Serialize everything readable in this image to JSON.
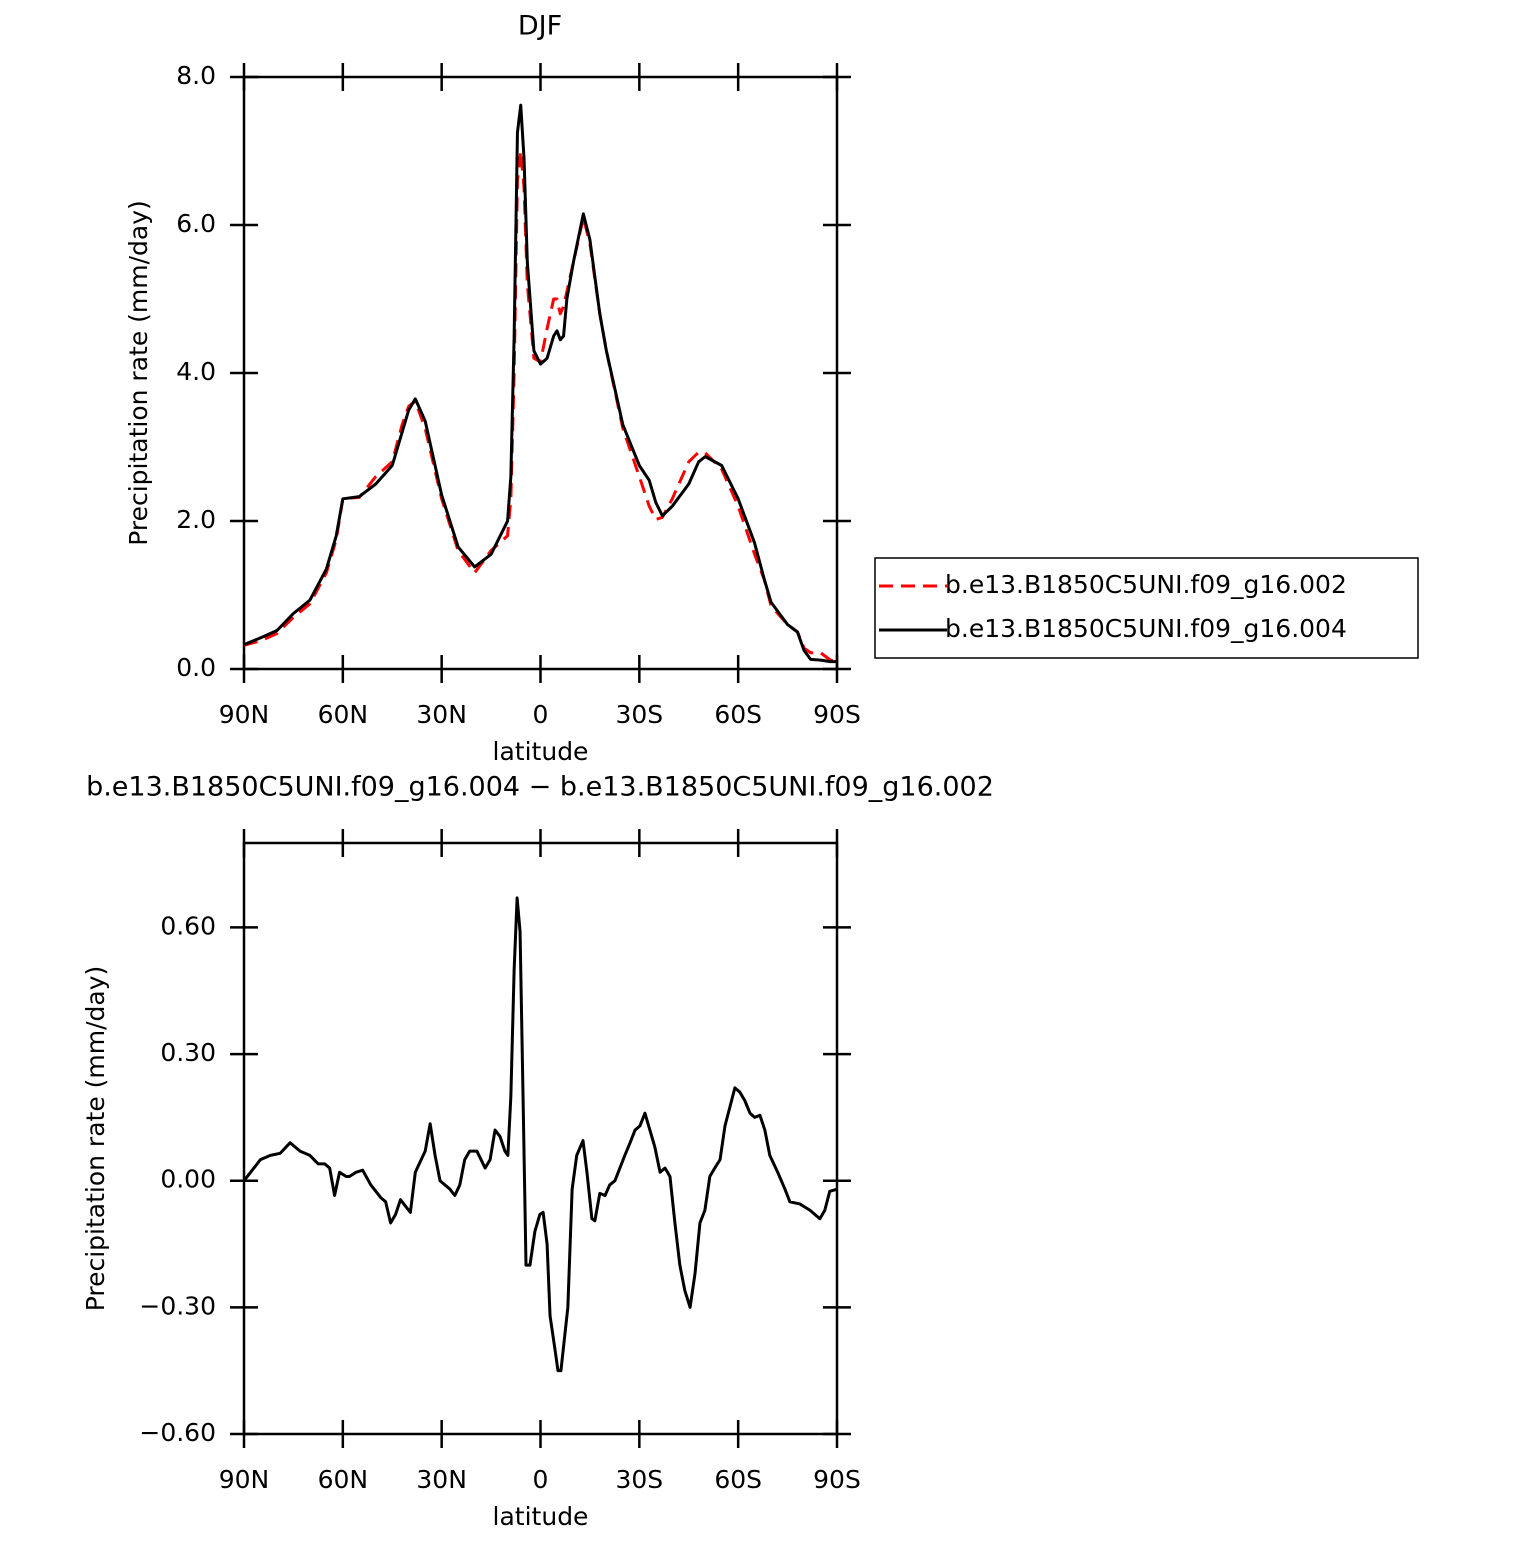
{
  "chart_data": [
    {
      "type": "line",
      "title": "DJF",
      "xlabel": "latitude",
      "ylabel": "Precipitation rate (mm/day)",
      "x": [
        90,
        85,
        80,
        75,
        70,
        65,
        62,
        60,
        55,
        50,
        45,
        42,
        40,
        38,
        35,
        30,
        25,
        20,
        15,
        10,
        9,
        8,
        7,
        6,
        5,
        4,
        2,
        0,
        -2,
        -4,
        -5,
        -6,
        -7,
        -8,
        -10,
        -13,
        -15,
        -18,
        -20,
        -25,
        -30,
        -33,
        -35,
        -37,
        -40,
        -45,
        -48,
        -50,
        -55,
        -60,
        -65,
        -68,
        -70,
        -75,
        -78,
        -80,
        -82,
        -85,
        -88,
        -90
      ],
      "series": [
        {
          "name": "b.e13.B1850C5UNI.f09_g16.002",
          "color": "#ff0000",
          "dash": true,
          "values": [
            0.32,
            0.38,
            0.48,
            0.7,
            0.88,
            1.3,
            1.75,
            2.3,
            2.32,
            2.6,
            2.8,
            3.3,
            3.55,
            3.62,
            3.25,
            2.3,
            1.6,
            1.3,
            1.6,
            1.8,
            2.3,
            4.0,
            6.6,
            7.0,
            6.5,
            5.2,
            4.2,
            4.15,
            4.6,
            5.0,
            5.0,
            4.8,
            4.9,
            5.1,
            5.5,
            6.1,
            5.75,
            4.8,
            4.3,
            3.25,
            2.6,
            2.2,
            2.02,
            2.05,
            2.3,
            2.8,
            2.93,
            2.92,
            2.7,
            2.2,
            1.55,
            1.2,
            0.85,
            0.6,
            0.5,
            0.28,
            0.22,
            0.22,
            0.12,
            0.1
          ]
        },
        {
          "name": "b.e13.B1850C5UNI.f09_g16.004",
          "color": "#000000",
          "dash": false,
          "values": [
            0.33,
            0.42,
            0.52,
            0.75,
            0.93,
            1.35,
            1.8,
            2.3,
            2.33,
            2.5,
            2.75,
            3.2,
            3.5,
            3.65,
            3.35,
            2.35,
            1.65,
            1.38,
            1.55,
            2.0,
            2.6,
            4.5,
            7.25,
            7.62,
            6.9,
            5.5,
            4.3,
            4.12,
            4.2,
            4.5,
            4.57,
            4.45,
            4.5,
            5.0,
            5.5,
            6.15,
            5.8,
            4.8,
            4.3,
            3.3,
            2.75,
            2.55,
            2.25,
            2.07,
            2.2,
            2.5,
            2.8,
            2.87,
            2.75,
            2.3,
            1.7,
            1.2,
            0.9,
            0.6,
            0.5,
            0.25,
            0.13,
            0.12,
            0.1,
            0.1
          ]
        }
      ],
      "xlim": [
        90,
        -90
      ],
      "xticks": [
        {
          "value": 90,
          "label": "90N"
        },
        {
          "value": 60,
          "label": "60N"
        },
        {
          "value": 30,
          "label": "30N"
        },
        0,
        {
          "value": -30,
          "label": "30S"
        },
        {
          "value": -60,
          "label": "60S"
        },
        {
          "value": -90,
          "label": "90S"
        }
      ],
      "ylim": [
        0,
        8
      ],
      "yticks": [
        {
          "value": 0,
          "label": "0.0"
        },
        {
          "value": 2,
          "label": "2.0"
        },
        {
          "value": 4,
          "label": "4.0"
        },
        {
          "value": 6,
          "label": "6.0"
        },
        {
          "value": 8,
          "label": "8.0"
        }
      ],
      "legend": "right"
    },
    {
      "type": "line",
      "title": "b.e13.B1850C5UNI.f09_g16.004 − b.e13.B1850C5UNI.f09_g16.002",
      "xlabel": "latitude",
      "ylabel": "Precipitation rate (mm/day)",
      "x": [
        90,
        88,
        85,
        82,
        79,
        76,
        73,
        70,
        67.5,
        65.5,
        64,
        62.5,
        61,
        59,
        58,
        56,
        54,
        51.5,
        48.5,
        47,
        45.5,
        44,
        42.5,
        41,
        39.5,
        38,
        35,
        33.5,
        32,
        30.5,
        29,
        27.5,
        26,
        24.5,
        23,
        21.5,
        19.3,
        16.8,
        15.3,
        13.8,
        12.3,
        10.8,
        9.9,
        9,
        8,
        7.1,
        6.2,
        5.3,
        4.4,
        3.2,
        1.7,
        0.2,
        -0.8,
        -2,
        -2.9,
        -4.4,
        -5.3,
        -6.2,
        -8.3,
        -9.6,
        -11,
        -12.9,
        -14.1,
        -15.6,
        -16.5,
        -18,
        -19.6,
        -21,
        -22.6,
        -25.6,
        -27.2,
        -28.7,
        -30.2,
        -31.7,
        -33.2,
        -34.7,
        -36.3,
        -37.8,
        -39.3,
        -40.8,
        -42.3,
        -43.8,
        -45.4,
        -46.9,
        -48.4,
        -49.9,
        -51.4,
        -52.9,
        -54.5,
        -56,
        -59,
        -60.5,
        -62,
        -63.6,
        -65,
        -66.6,
        -68.1,
        -69.6,
        -72,
        -74.2,
        -75.7,
        -78.7,
        -81.8,
        -84.8,
        -86.3,
        -87.8,
        -90
      ],
      "series": [
        {
          "color": "#000000",
          "dash": false,
          "values": [
            0.0,
            0.02,
            0.05,
            0.06,
            0.065,
            0.09,
            0.07,
            0.06,
            0.04,
            0.04,
            0.03,
            -0.035,
            0.02,
            0.01,
            0.01,
            0.02,
            0.025,
            -0.01,
            -0.04,
            -0.05,
            -0.1,
            -0.08,
            -0.045,
            -0.06,
            -0.075,
            0.02,
            0.07,
            0.135,
            0.06,
            0.0,
            -0.01,
            -0.02,
            -0.035,
            -0.01,
            0.05,
            0.07,
            0.07,
            0.03,
            0.05,
            0.12,
            0.105,
            0.07,
            0.06,
            0.2,
            0.5,
            0.67,
            0.59,
            0.2,
            -0.2,
            -0.2,
            -0.12,
            -0.08,
            -0.075,
            -0.15,
            -0.32,
            -0.4,
            -0.45,
            -0.45,
            -0.3,
            -0.02,
            0.06,
            0.095,
            0.02,
            -0.09,
            -0.095,
            -0.03,
            -0.035,
            -0.01,
            0.0,
            0.06,
            0.09,
            0.12,
            0.13,
            0.16,
            0.12,
            0.08,
            0.02,
            0.03,
            0.01,
            -0.1,
            -0.2,
            -0.26,
            -0.3,
            -0.22,
            -0.1,
            -0.07,
            0.01,
            0.03,
            0.05,
            0.13,
            0.22,
            0.21,
            0.19,
            0.16,
            0.15,
            0.155,
            0.12,
            0.06,
            0.02,
            -0.02,
            -0.05,
            -0.055,
            -0.07,
            -0.09,
            -0.07,
            -0.025,
            -0.02
          ]
        }
      ],
      "xlim": [
        90,
        -90
      ],
      "xticks": [
        {
          "value": 90,
          "label": "90N"
        },
        {
          "value": 60,
          "label": "60N"
        },
        {
          "value": 30,
          "label": "30N"
        },
        0,
        {
          "value": -30,
          "label": "30S"
        },
        {
          "value": -60,
          "label": "60S"
        },
        {
          "value": -90,
          "label": "90S"
        }
      ],
      "ylim": [
        -0.6,
        0.8
      ],
      "yticks": [
        {
          "value": -0.6,
          "label": "−0.60"
        },
        {
          "value": -0.3,
          "label": "−0.30"
        },
        {
          "value": 0,
          "label": "0.00"
        },
        {
          "value": 0.3,
          "label": "0.30"
        },
        {
          "value": 0.6,
          "label": "0.60"
        }
      ]
    }
  ]
}
